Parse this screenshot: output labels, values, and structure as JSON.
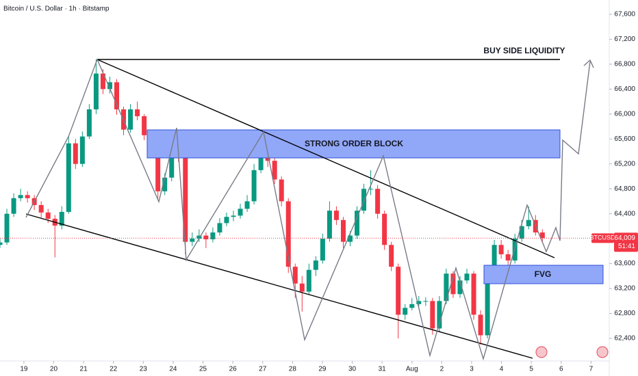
{
  "chart_data": {
    "type": "candlestick",
    "title": "Bitcoin / U.S. Dollar · 1h · Bitstamp",
    "annotations": [
      "BUY SIDE LIQUIDITY",
      "STRONG ORDER BLOCK",
      "FVG"
    ],
    "last_price": {
      "value": 64009,
      "label": "64,009"
    },
    "countdown": "51:41",
    "xlim": [
      -0.8,
      19.61
    ],
    "ylim": [
      62038,
      67830
    ],
    "xticks": [
      {
        "value": 0,
        "label": "19"
      },
      {
        "value": 1,
        "label": "20"
      },
      {
        "value": 2,
        "label": "21"
      },
      {
        "value": 3,
        "label": "22"
      },
      {
        "value": 4,
        "label": "23"
      },
      {
        "value": 5,
        "label": "24"
      },
      {
        "value": 6,
        "label": "25"
      },
      {
        "value": 7,
        "label": "26"
      },
      {
        "value": 8,
        "label": "27"
      },
      {
        "value": 9,
        "label": "28"
      },
      {
        "value": 10,
        "label": "29"
      },
      {
        "value": 11,
        "label": "30"
      },
      {
        "value": 12,
        "label": "31"
      },
      {
        "value": 13,
        "label": "Aug"
      },
      {
        "value": 14,
        "label": "2"
      },
      {
        "value": 15,
        "label": "3"
      },
      {
        "value": 16,
        "label": "4"
      },
      {
        "value": 17,
        "label": "5"
      },
      {
        "value": 18,
        "label": "6"
      },
      {
        "value": 19,
        "label": "7"
      }
    ],
    "yticks": [
      {
        "value": 62400,
        "label": "62,400"
      },
      {
        "value": 62800,
        "label": "62,800"
      },
      {
        "value": 63200,
        "label": "63,200"
      },
      {
        "value": 63600,
        "label": "63,600"
      },
      {
        "value": 64000,
        "label": "64,000"
      },
      {
        "value": 64400,
        "label": "64,400"
      },
      {
        "value": 64800,
        "label": "64,800"
      },
      {
        "value": 65200,
        "label": "65,200"
      },
      {
        "value": 65600,
        "label": "65,600"
      },
      {
        "value": 66000,
        "label": "66,000"
      },
      {
        "value": 66400,
        "label": "66,400"
      },
      {
        "value": 66800,
        "label": "66,800"
      },
      {
        "value": 67200,
        "label": "67,200"
      },
      {
        "value": 67600,
        "label": "67,600"
      }
    ],
    "grid": false,
    "x": [
      -0.8,
      -0.57,
      -0.34,
      -0.11,
      0.12,
      0.35,
      0.58,
      0.81,
      1.04,
      1.27,
      1.5,
      1.73,
      1.96,
      2.19,
      2.42,
      2.65,
      2.88,
      3.11,
      3.34,
      3.57,
      3.8,
      4.03,
      4.26,
      4.49,
      4.72,
      4.95,
      5.18,
      5.41,
      5.64,
      5.87,
      6.1,
      6.33,
      6.56,
      6.79,
      7.02,
      7.25,
      7.48,
      7.71,
      7.94,
      8.17,
      8.4,
      8.63,
      8.86,
      9.09,
      9.32,
      9.55,
      9.78,
      10.01,
      10.24,
      10.47,
      10.7,
      10.93,
      11.16,
      11.39,
      11.62,
      11.85,
      12.08,
      12.31,
      12.54,
      12.77,
      13.0,
      13.23,
      13.46,
      13.69,
      13.92,
      14.15,
      14.38,
      14.61,
      14.84,
      15.07,
      15.3,
      15.53,
      15.76,
      15.99,
      16.22,
      16.45,
      16.68,
      16.91,
      17.14,
      17.37
    ],
    "series": [
      {
        "name": "BTCUSD",
        "up_color": "#089981",
        "down_color": "#f23645",
        "ohlc": [
          [
            63900,
            64000,
            63850,
            63940
          ],
          [
            63940,
            64480,
            63900,
            64400
          ],
          [
            64400,
            64730,
            64350,
            64650
          ],
          [
            64650,
            64800,
            64600,
            64700
          ],
          [
            64700,
            64760,
            64580,
            64650
          ],
          [
            64650,
            64700,
            64460,
            64540
          ],
          [
            64540,
            64600,
            64340,
            64420
          ],
          [
            64420,
            64480,
            64250,
            64320
          ],
          [
            64320,
            64380,
            63700,
            64210
          ],
          [
            64210,
            64520,
            64150,
            64430
          ],
          [
            64430,
            65650,
            64400,
            65530
          ],
          [
            65530,
            65600,
            65120,
            65200
          ],
          [
            65200,
            65720,
            65150,
            65640
          ],
          [
            65640,
            66160,
            65600,
            66075
          ],
          [
            66075,
            66876,
            66000,
            66650
          ],
          [
            66650,
            66720,
            66320,
            66400
          ],
          [
            66400,
            66600,
            66330,
            66510
          ],
          [
            66510,
            66560,
            65990,
            66075
          ],
          [
            66075,
            66120,
            65660,
            65750
          ],
          [
            65750,
            66160,
            65700,
            66075
          ],
          [
            66075,
            66200,
            65900,
            65965
          ],
          [
            65965,
            66000,
            65580,
            65660
          ],
          [
            65660,
            65720,
            65450,
            65530
          ],
          [
            65530,
            65580,
            64650,
            64760
          ],
          [
            64760,
            65050,
            64700,
            64980
          ],
          [
            64980,
            65500,
            64920,
            65420
          ],
          [
            65420,
            65480,
            65230,
            65310
          ],
          [
            65310,
            65350,
            63750,
            63950
          ],
          [
            63950,
            64100,
            63880,
            64000
          ],
          [
            64000,
            64150,
            63950,
            64050
          ],
          [
            64050,
            64100,
            63850,
            63990
          ],
          [
            63990,
            64180,
            63940,
            64100
          ],
          [
            64100,
            64330,
            64050,
            64250
          ],
          [
            64250,
            64420,
            64200,
            64350
          ],
          [
            64350,
            64450,
            64280,
            64370
          ],
          [
            64370,
            64560,
            64320,
            64480
          ],
          [
            64480,
            64700,
            64430,
            64600
          ],
          [
            64600,
            65200,
            64550,
            65100
          ],
          [
            65100,
            65700,
            65050,
            65300
          ],
          [
            65300,
            65400,
            65150,
            65250
          ],
          [
            65250,
            65300,
            64880,
            64950
          ],
          [
            64950,
            65000,
            64520,
            64600
          ],
          [
            64600,
            64650,
            63450,
            63550
          ],
          [
            63550,
            63600,
            63050,
            63280
          ],
          [
            63280,
            63400,
            62830,
            63150
          ],
          [
            63150,
            63600,
            63100,
            63500
          ],
          [
            63500,
            63720,
            63400,
            63650
          ],
          [
            63650,
            64080,
            63600,
            64000
          ],
          [
            64000,
            64600,
            63950,
            64450
          ],
          [
            64450,
            64520,
            64220,
            64300
          ],
          [
            64300,
            64350,
            63850,
            63950
          ],
          [
            63950,
            64120,
            63880,
            64050
          ],
          [
            64050,
            64520,
            64000,
            64450
          ],
          [
            64450,
            64880,
            64400,
            64800
          ],
          [
            64800,
            65100,
            64700,
            64800
          ],
          [
            64800,
            64860,
            64320,
            64400
          ],
          [
            64400,
            64450,
            63820,
            63900
          ],
          [
            63900,
            63950,
            63480,
            63550
          ],
          [
            63550,
            63600,
            62400,
            62780
          ],
          [
            62780,
            62950,
            62700,
            62890
          ],
          [
            62890,
            63050,
            62850,
            62950
          ],
          [
            62950,
            63080,
            62900,
            63000
          ],
          [
            63000,
            63060,
            62920,
            63000
          ],
          [
            63000,
            63050,
            62460,
            62560
          ],
          [
            62560,
            63080,
            62500,
            63000
          ],
          [
            63000,
            63520,
            62950,
            63440
          ],
          [
            63440,
            63480,
            63050,
            63110
          ],
          [
            63110,
            63400,
            63050,
            63330
          ],
          [
            63330,
            63520,
            63280,
            63440
          ],
          [
            63440,
            63480,
            62700,
            62780
          ],
          [
            62780,
            62850,
            62300,
            62450
          ],
          [
            62450,
            63580,
            62400,
            63500
          ],
          [
            63500,
            63980,
            63450,
            63900
          ],
          [
            63900,
            63980,
            63680,
            63750
          ],
          [
            63750,
            63820,
            63580,
            63650
          ],
          [
            63650,
            64080,
            63600,
            64000
          ],
          [
            64000,
            64300,
            63950,
            64200
          ],
          [
            64200,
            64520,
            64150,
            64300
          ],
          [
            64300,
            64380,
            64050,
            64100
          ],
          [
            64100,
            64150,
            63950,
            64009
          ]
        ]
      }
    ]
  }
}
